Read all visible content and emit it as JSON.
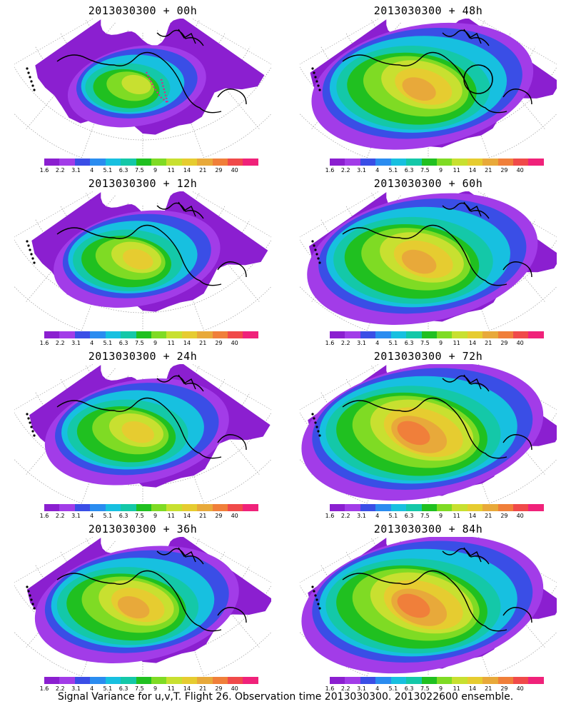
{
  "colorbar": {
    "labels": [
      "1.6",
      "2.2",
      "3.1",
      "4",
      "5.1",
      "6.3",
      "7.5",
      "9",
      "11",
      "14",
      "21",
      "29",
      "40"
    ],
    "colors": [
      "#8b1fd0",
      "#a23ce8",
      "#3a4ee6",
      "#2a8cf0",
      "#17c0e0",
      "#14c8a8",
      "#20c020",
      "#7fdb24",
      "#c8e030",
      "#e6cc30",
      "#e8a93a",
      "#f07f3a",
      "#f04a4a",
      "#f0227a"
    ]
  },
  "panels": [
    {
      "id": "p00",
      "title": "2013030300 + 00h",
      "col": 0,
      "row": 0,
      "spread": 0.45,
      "intensity": 0.55,
      "track": true,
      "circle": false
    },
    {
      "id": "p48",
      "title": "2013030300 + 48h",
      "col": 1,
      "row": 0,
      "spread": 0.9,
      "intensity": 0.85,
      "track": false,
      "circle": true
    },
    {
      "id": "p12",
      "title": "2013030300 + 12h",
      "col": 0,
      "row": 1,
      "spread": 0.6,
      "intensity": 0.65,
      "track": false,
      "circle": false
    },
    {
      "id": "p60",
      "title": "2013030300 + 60h",
      "col": 1,
      "row": 1,
      "spread": 0.95,
      "intensity": 0.9,
      "track": false,
      "circle": false
    },
    {
      "id": "p24",
      "title": "2013030300 + 24h",
      "col": 0,
      "row": 2,
      "spread": 0.7,
      "intensity": 0.7,
      "track": false,
      "circle": false
    },
    {
      "id": "p72",
      "title": "2013030300 + 72h",
      "col": 1,
      "row": 2,
      "spread": 1.0,
      "intensity": 0.95,
      "track": false,
      "circle": false
    },
    {
      "id": "p36",
      "title": "2013030300 + 36h",
      "col": 0,
      "row": 3,
      "spread": 0.8,
      "intensity": 0.8,
      "track": false,
      "circle": false
    },
    {
      "id": "p84",
      "title": "2013030300 + 84h",
      "col": 1,
      "row": 3,
      "spread": 1.0,
      "intensity": 1.0,
      "track": false,
      "circle": false
    }
  ],
  "caption": "Signal Variance for u,v,T. Flight 26. Observation time 2013030300. 2013022600 ensemble."
}
